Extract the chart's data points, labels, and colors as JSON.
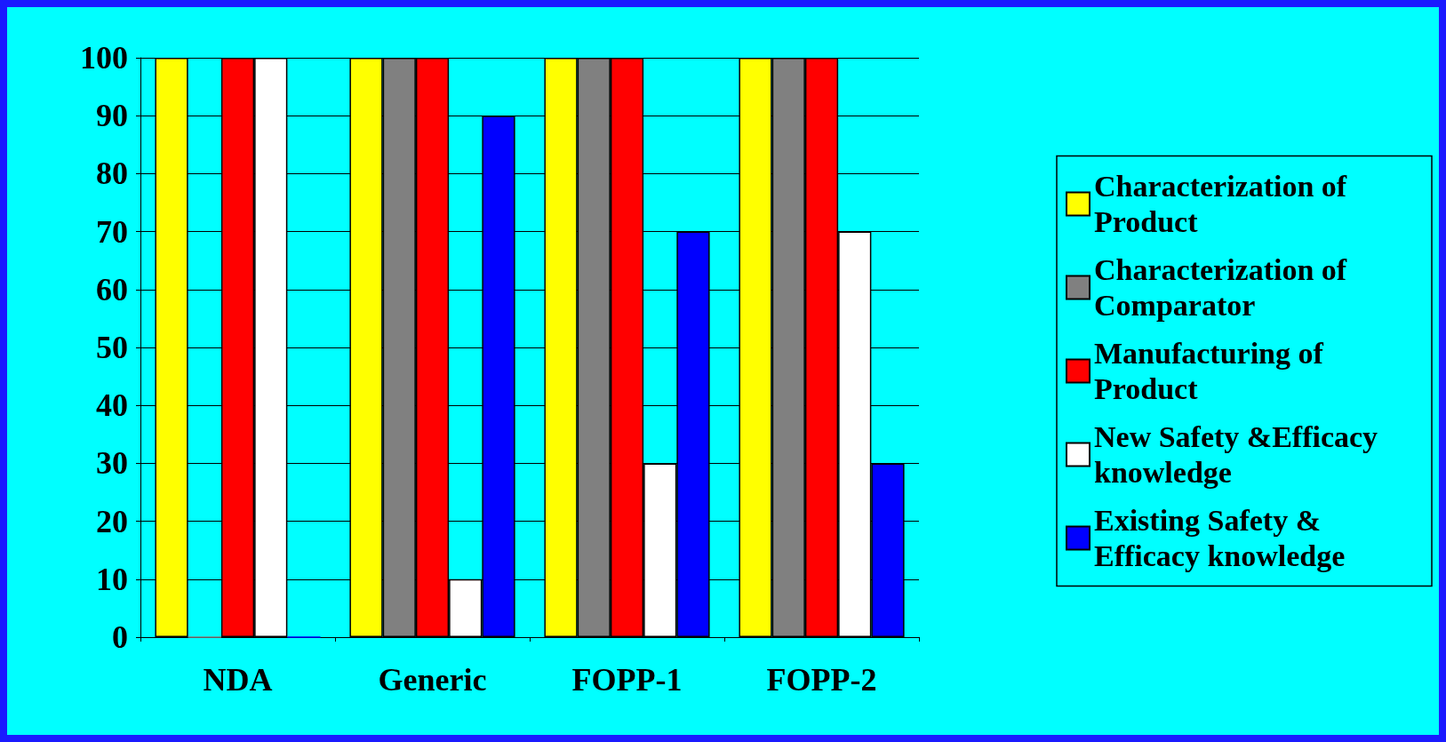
{
  "chart_data": {
    "type": "bar",
    "categories": [
      "NDA",
      "Generic",
      "FOPP-1",
      "FOPP-2"
    ],
    "series": [
      {
        "name": "Characterization of Product",
        "color": "#ffff00",
        "values": [
          100,
          100,
          100,
          100
        ]
      },
      {
        "name": "Characterization of Comparator",
        "color": "#808080",
        "values": [
          0,
          100,
          100,
          100
        ]
      },
      {
        "name": "Manufacturing of Product",
        "color": "#ff0000",
        "values": [
          100,
          100,
          100,
          100
        ]
      },
      {
        "name": "New Safety &Efficacy knowledge",
        "color": "#ffffff",
        "values": [
          100,
          10,
          30,
          70
        ]
      },
      {
        "name": "Existing Safety &Efficacy knowledge",
        "color": "#0000ff",
        "values": [
          0,
          90,
          70,
          30
        ]
      }
    ],
    "ylim": [
      0,
      100
    ],
    "yticks": [
      0,
      10,
      20,
      30,
      40,
      50,
      60,
      70,
      80,
      90,
      100
    ],
    "grid": "y",
    "legend": "right"
  }
}
